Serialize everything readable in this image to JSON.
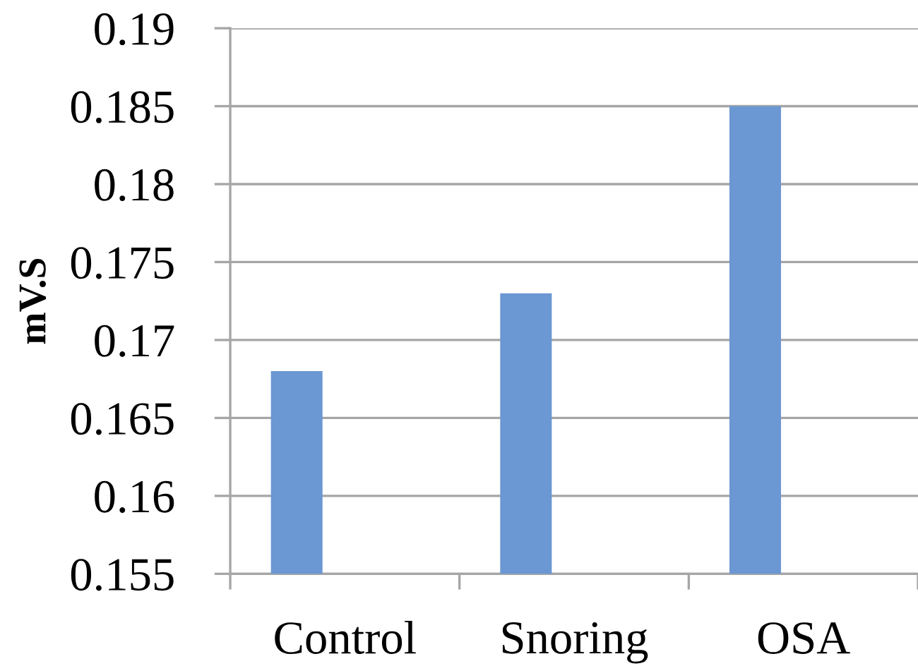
{
  "chart_data": {
    "type": "bar",
    "ylabel": "mV.S",
    "categories": [
      "Control",
      "Snoring",
      "OSA"
    ],
    "values": [
      0.168,
      0.173,
      0.185
    ],
    "color": "#6b97d3",
    "ylim": [
      0.155,
      0.19
    ],
    "yticks": [
      0.155,
      0.16,
      0.165,
      0.17,
      0.175,
      0.18,
      0.185,
      0.19
    ],
    "grid": "y"
  }
}
